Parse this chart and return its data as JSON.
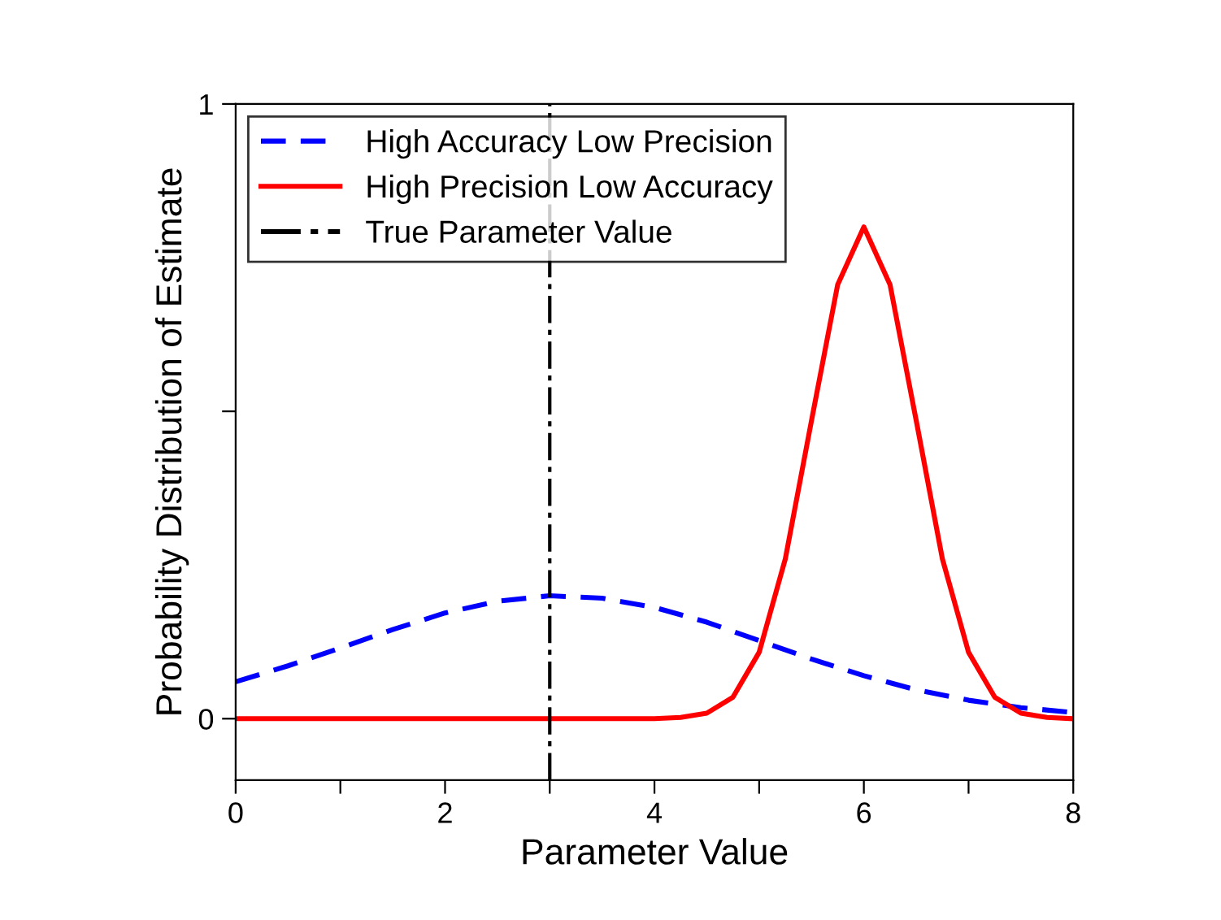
{
  "chart_data": {
    "type": "line",
    "xlabel": "Parameter Value",
    "ylabel": "Probability Distribution of Estimate",
    "xlim": [
      0,
      8
    ],
    "ylim": [
      -0.1,
      1
    ],
    "xticks": [
      0,
      {
        "value": 1,
        "label": null
      },
      2,
      {
        "value": 3,
        "label": null
      },
      4,
      {
        "value": 5,
        "label": null
      },
      6,
      {
        "value": 7,
        "label": null
      },
      8
    ],
    "yticks": [
      0,
      {
        "value": 0.5,
        "label": null
      },
      1
    ],
    "grid": false,
    "legend": "top left",
    "marker": "none",
    "series": [
      {
        "name": "High Accuracy Low Precision",
        "color": "#0000ff",
        "line_style": "dashed",
        "x": [
          0,
          0.5,
          1,
          1.5,
          2,
          2.5,
          3,
          3.5,
          4,
          4.5,
          5,
          5.5,
          6,
          6.5,
          7,
          7.5,
          8
        ],
        "values": [
          0.06,
          0.086,
          0.115,
          0.145,
          0.172,
          0.191,
          0.2,
          0.196,
          0.181,
          0.157,
          0.127,
          0.097,
          0.07,
          0.047,
          0.03,
          0.018,
          0.01
        ]
      },
      {
        "name": "High Precision Low Accuracy",
        "color": "#ff0000",
        "line_style": "solid",
        "x": [
          0,
          1,
          2,
          3,
          4,
          4.25,
          4.5,
          4.75,
          5,
          5.25,
          5.5,
          5.75,
          6,
          6.25,
          6.5,
          6.75,
          7,
          7.25,
          7.5,
          7.75,
          8
        ],
        "values": [
          0,
          0,
          0,
          0,
          0,
          0.002,
          0.009,
          0.035,
          0.108,
          0.26,
          0.485,
          0.706,
          0.8,
          0.706,
          0.485,
          0.26,
          0.108,
          0.035,
          0.009,
          0.002,
          0
        ]
      }
    ],
    "ref_lines": [
      {
        "axis": "x",
        "value": 3,
        "label": "True Parameter Value",
        "color": "#000000",
        "line_style": "dashdot"
      }
    ]
  }
}
